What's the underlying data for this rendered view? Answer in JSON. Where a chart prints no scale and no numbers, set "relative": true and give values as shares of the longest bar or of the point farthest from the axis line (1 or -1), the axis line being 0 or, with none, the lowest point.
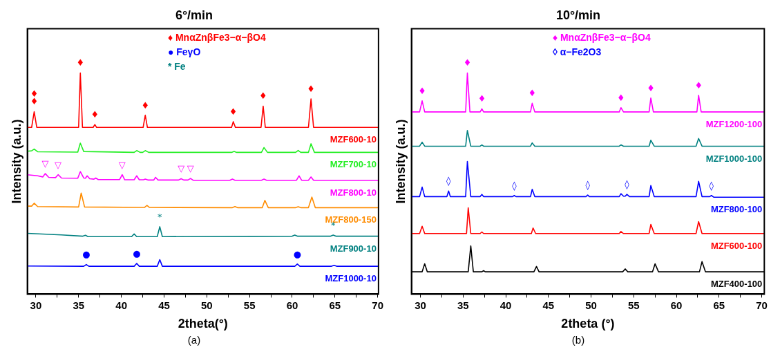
{
  "chart_data": [
    {
      "type": "line",
      "title": "6°/min",
      "subtitle": "(a)",
      "xlabel": "2theta(°)",
      "ylabel": "Intensity (a.u.)",
      "relative": true,
      "xlim": [
        29,
        70.1
      ],
      "xticks": [
        30,
        {
          "value": 32.5,
          "label": null
        },
        35,
        {
          "value": 37.5,
          "label": null
        },
        40,
        {
          "value": 42.5,
          "label": null
        },
        45,
        {
          "value": 47.5,
          "label": null
        },
        50,
        {
          "value": 52.5,
          "label": null
        },
        55,
        {
          "value": 57.5,
          "label": null
        },
        60,
        {
          "value": 62.5,
          "label": null
        },
        65,
        {
          "value": 67.5,
          "label": null
        },
        70
      ],
      "tick_labels": "x",
      "grid": false,
      "legend": false,
      "marker": "none",
      "line_style": "solid",
      "series": [
        {
          "name": "MZF600-10",
          "color": "#ff0000",
          "x": [
            29,
            29.5,
            29.8,
            30.1,
            35,
            35.2,
            35.45,
            36.7,
            36.9,
            37.1,
            42.55,
            42.8,
            43.05,
            52.9,
            53.1,
            53.35,
            56.35,
            56.6,
            56.85,
            61.9,
            62.2,
            62.5,
            70
          ],
          "values": [
            0.754,
            0.754,
            0.825,
            0.754,
            0.754,
            1,
            0.754,
            0.754,
            0.767,
            0.754,
            0.754,
            0.809,
            0.754,
            0.754,
            0.78,
            0.754,
            0.754,
            0.85,
            0.754,
            0.754,
            0.883,
            0.754,
            0.754
          ]
        },
        {
          "name": "MZF700-10",
          "color": "#22ee22",
          "x": [
            29,
            29.5,
            29.8,
            30.2,
            34.9,
            35.2,
            35.6,
            41.5,
            41.8,
            42.2,
            42.5,
            42.8,
            43.2,
            52.9,
            53.2,
            53.5,
            56.4,
            56.7,
            57.1,
            60.4,
            60.7,
            61,
            61.9,
            62.2,
            62.6,
            70
          ],
          "values": [
            0.646,
            0.648,
            0.656,
            0.644,
            0.642,
            0.683,
            0.645,
            0.641,
            0.649,
            0.641,
            0.641,
            0.649,
            0.641,
            0.641,
            0.645,
            0.641,
            0.641,
            0.663,
            0.641,
            0.641,
            0.65,
            0.641,
            0.641,
            0.68,
            0.641,
            0.641
          ]
        },
        {
          "name": "MZF800-10",
          "color": "#ff00ff",
          "x": [
            29,
            30.2,
            30.8,
            31.1,
            31.5,
            32.3,
            32.6,
            33,
            34.9,
            35.2,
            35.6,
            35.8,
            36,
            36.3,
            36.8,
            37,
            37.3,
            39.8,
            40.1,
            40.4,
            41.5,
            41.8,
            42.1,
            42.6,
            42.8,
            43.1,
            43.8,
            44,
            44.3,
            46.7,
            47,
            47.3,
            47.8,
            48.1,
            48.4,
            52.7,
            53,
            53.3,
            56.4,
            56.7,
            57,
            60.5,
            60.8,
            61.1,
            61.9,
            62.2,
            62.5,
            70
          ],
          "values": [
            0.54,
            0.535,
            0.53,
            0.545,
            0.528,
            0.527,
            0.54,
            0.525,
            0.524,
            0.554,
            0.525,
            0.524,
            0.535,
            0.522,
            0.52,
            0.525,
            0.518,
            0.518,
            0.54,
            0.517,
            0.517,
            0.535,
            0.517,
            0.517,
            0.52,
            0.516,
            0.516,
            0.528,
            0.516,
            0.516,
            0.522,
            0.516,
            0.516,
            0.523,
            0.515,
            0.515,
            0.52,
            0.515,
            0.515,
            0.52,
            0.515,
            0.515,
            0.535,
            0.515,
            0.515,
            0.53,
            0.515,
            0.515
          ]
        },
        {
          "name": "MZF800-150",
          "color": "#ff8c00",
          "x": [
            29,
            29.5,
            29.8,
            30.2,
            35,
            35.3,
            35.7,
            42.7,
            43,
            43.3,
            53,
            53.3,
            53.6,
            56.5,
            56.8,
            57.2,
            60.4,
            60.7,
            61,
            61.9,
            62.3,
            62.7,
            70
          ],
          "values": [
            0.398,
            0.398,
            0.411,
            0.396,
            0.394,
            0.457,
            0.394,
            0.392,
            0.401,
            0.392,
            0.391,
            0.396,
            0.391,
            0.391,
            0.424,
            0.391,
            0.391,
            0.395,
            0.391,
            0.391,
            0.439,
            0.391,
            0.391
          ]
        },
        {
          "name": "MZF900-10",
          "color": "#008080",
          "x": [
            29,
            33,
            35.5,
            35.8,
            36.1,
            41.2,
            41.5,
            41.8,
            44.2,
            44.5,
            44.8,
            60,
            60.3,
            60.6,
            64.5,
            64.8,
            65.1,
            70
          ],
          "values": [
            0.275,
            0.268,
            0.262,
            0.266,
            0.26,
            0.26,
            0.272,
            0.26,
            0.26,
            0.305,
            0.26,
            0.262,
            0.267,
            0.262,
            0.262,
            0.267,
            0.262,
            0.262
          ]
        },
        {
          "name": "MZF1000-10",
          "color": "#0000ff",
          "x": [
            29,
            35.6,
            35.9,
            36.2,
            41.5,
            41.8,
            42.1,
            44.2,
            44.5,
            44.8,
            60.3,
            60.6,
            60.9,
            64.6,
            64.9,
            65.2,
            70
          ],
          "values": [
            0.127,
            0.126,
            0.134,
            0.126,
            0.126,
            0.139,
            0.126,
            0.126,
            0.156,
            0.126,
            0.126,
            0.136,
            0.126,
            0.126,
            0.13,
            0.126,
            0.126
          ]
        }
      ],
      "annotations": [
        "♦ MnαZnβFe3−α−βO4",
        "● FeγO",
        "* Fe",
        {
          "text": "♦\n♦",
          "x": 29.8,
          "y": 0.825
        },
        {
          "text": "♦",
          "x": 35.2,
          "y": 1
        },
        {
          "text": "♦",
          "x": 36.9,
          "y": 0.767
        },
        {
          "text": "♦",
          "x": 42.8,
          "y": 0.809
        },
        {
          "text": "♦",
          "x": 53.1,
          "y": 0.78
        },
        {
          "text": "♦",
          "x": 56.6,
          "y": 0.85
        },
        {
          "text": "♦",
          "x": 62.2,
          "y": 0.883
        },
        {
          "text": "●",
          "x": 35.9,
          "y": 0.134
        },
        {
          "text": "●",
          "x": 41.8,
          "y": 0.139
        },
        {
          "text": "●",
          "x": 60.6,
          "y": 0.136
        },
        {
          "text": "*",
          "x": 44.5,
          "y": 0.305
        },
        {
          "text": "*",
          "x": 64.8,
          "y": 0.267
        },
        {
          "text": "▽",
          "x": 31.1,
          "y": 0.545
        },
        {
          "text": "▽",
          "x": 32.6,
          "y": 0.54
        },
        {
          "text": "▽",
          "x": 40.1,
          "y": 0.54
        },
        {
          "text": "▽",
          "x": 47,
          "y": 0.522
        },
        {
          "text": "▽",
          "x": 48.1,
          "y": 0.523
        }
      ]
    },
    {
      "type": "line",
      "title": "10°/min",
      "subtitle": "(b)",
      "xlabel": "2theta (°)",
      "ylabel": "Intensity (a.u.)",
      "relative": true,
      "xlim": [
        28.95,
        70.3
      ],
      "xticks": [
        30,
        {
          "value": 32.5,
          "label": null
        },
        35,
        {
          "value": 37.5,
          "label": null
        },
        40,
        {
          "value": 42.5,
          "label": null
        },
        45,
        {
          "value": 47.5,
          "label": null
        },
        50,
        {
          "value": 52.5,
          "label": null
        },
        55,
        {
          "value": 57.5,
          "label": null
        },
        60,
        {
          "value": 62.5,
          "label": null
        },
        65,
        {
          "value": 67.5,
          "label": null
        },
        70
      ],
      "tick_labels": "x",
      "grid": false,
      "legend": false,
      "marker": "none",
      "line_style": "solid",
      "series": [
        {
          "name": "MZF1200-100",
          "color": "#ff00ff",
          "x": [
            29,
            29.9,
            30.2,
            30.5,
            35.3,
            35.5,
            35.8,
            37,
            37.2,
            37.4,
            42.9,
            43.1,
            43.4,
            53.3,
            53.5,
            53.8,
            56.8,
            57,
            57.3,
            62.4,
            62.6,
            62.9,
            70.3
          ],
          "values": [
            0.824,
            0.824,
            0.874,
            0.824,
            0.824,
            1,
            0.824,
            0.824,
            0.838,
            0.824,
            0.824,
            0.863,
            0.824,
            0.824,
            0.843,
            0.824,
            0.824,
            0.887,
            0.824,
            0.824,
            0.899,
            0.824,
            0.824
          ]
        },
        {
          "name": "MZF1000-100",
          "color": "#008080",
          "x": [
            29,
            29.9,
            30.2,
            30.5,
            35.3,
            35.5,
            35.9,
            37,
            37.2,
            37.4,
            42.9,
            43.1,
            43.4,
            53.3,
            53.5,
            53.8,
            56.8,
            57,
            57.4,
            62.3,
            62.6,
            63,
            70.3
          ],
          "values": [
            0.669,
            0.669,
            0.687,
            0.669,
            0.669,
            0.74,
            0.669,
            0.669,
            0.675,
            0.669,
            0.669,
            0.684,
            0.669,
            0.669,
            0.675,
            0.669,
            0.669,
            0.696,
            0.669,
            0.669,
            0.704,
            0.669,
            0.669
          ]
        },
        {
          "name": "MZF800-100",
          "color": "#0000ff",
          "x": [
            29,
            29.9,
            30.2,
            30.5,
            33.1,
            33.3,
            33.5,
            35.3,
            35.5,
            35.9,
            37,
            37.2,
            37.4,
            40.8,
            41,
            41.2,
            42.9,
            43.1,
            43.4,
            49.4,
            49.6,
            49.8,
            53.3,
            53.5,
            53.8,
            54,
            54.2,
            54.5,
            56.8,
            57,
            57.4,
            62.3,
            62.6,
            63,
            63.9,
            64.1,
            64.4,
            70.3
          ],
          "values": [
            0.441,
            0.441,
            0.484,
            0.441,
            0.441,
            0.466,
            0.441,
            0.441,
            0.6,
            0.441,
            0.441,
            0.451,
            0.441,
            0.441,
            0.446,
            0.441,
            0.441,
            0.474,
            0.441,
            0.441,
            0.448,
            0.441,
            0.441,
            0.454,
            0.443,
            0.443,
            0.451,
            0.441,
            0.441,
            0.491,
            0.441,
            0.441,
            0.51,
            0.441,
            0.441,
            0.446,
            0.438,
            0.438
          ]
        },
        {
          "name": "MZF600-100",
          "color": "#ff0000",
          "x": [
            29,
            29.9,
            30.2,
            30.5,
            35.4,
            35.6,
            35.9,
            37,
            37.2,
            37.4,
            43,
            43.2,
            43.5,
            53.3,
            53.5,
            53.8,
            56.8,
            57,
            57.4,
            62.3,
            62.6,
            63,
            70.3
          ],
          "values": [
            0.274,
            0.274,
            0.307,
            0.274,
            0.274,
            0.39,
            0.274,
            0.274,
            0.281,
            0.274,
            0.274,
            0.299,
            0.274,
            0.274,
            0.283,
            0.274,
            0.274,
            0.315,
            0.274,
            0.274,
            0.328,
            0.274,
            0.274
          ]
        },
        {
          "name": "MZF400-100",
          "color": "#000000",
          "x": [
            29,
            30.2,
            30.5,
            30.8,
            35.6,
            35.9,
            36.2,
            37.2,
            37.4,
            37.6,
            43.3,
            43.6,
            43.9,
            53.7,
            54,
            54.3,
            57.2,
            57.5,
            57.9,
            62.7,
            63,
            63.4,
            70.3
          ],
          "values": [
            0.101,
            0.101,
            0.137,
            0.101,
            0.101,
            0.218,
            0.101,
            0.101,
            0.106,
            0.101,
            0.101,
            0.125,
            0.101,
            0.101,
            0.114,
            0.101,
            0.101,
            0.137,
            0.101,
            0.101,
            0.147,
            0.101,
            0.101
          ]
        }
      ],
      "annotations": [
        "♦ MnαZnβFe3−α−βO4",
        "◊ α−Fe2O3",
        {
          "text": "♦",
          "x": 30.2,
          "y": 0.874
        },
        {
          "text": "♦",
          "x": 35.5,
          "y": 1
        },
        {
          "text": "♦",
          "x": 37.2,
          "y": 0.838
        },
        {
          "text": "♦",
          "x": 43.1,
          "y": 0.863
        },
        {
          "text": "♦",
          "x": 53.5,
          "y": 0.843
        },
        {
          "text": "♦",
          "x": 57,
          "y": 0.887
        },
        {
          "text": "♦",
          "x": 62.6,
          "y": 0.899
        },
        {
          "text": "◊",
          "x": 33.3,
          "y": 0.466
        },
        {
          "text": "◊",
          "x": 41,
          "y": 0.446
        },
        {
          "text": "◊",
          "x": 49.6,
          "y": 0.448
        },
        {
          "text": "◊",
          "x": 54.2,
          "y": 0.451
        },
        {
          "text": "◊",
          "x": 64.1,
          "y": 0.446
        }
      ]
    }
  ]
}
